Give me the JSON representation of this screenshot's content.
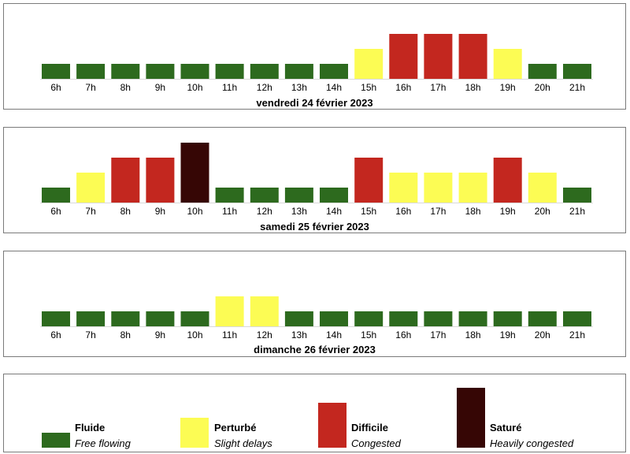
{
  "colors": {
    "fluide": "#2d6a1e",
    "perturbe": "#fcfc54",
    "difficile": "#c3271f",
    "sature": "#360605"
  },
  "level_scale": {
    "fluide": 1,
    "perturbe": 2,
    "difficile": 3,
    "sature": 4
  },
  "chart_data": [
    {
      "type": "bar",
      "title": "vendredi 24 février 2023",
      "categories": [
        "6h",
        "7h",
        "8h",
        "9h",
        "10h",
        "11h",
        "12h",
        "13h",
        "14h",
        "15h",
        "16h",
        "17h",
        "18h",
        "19h",
        "20h",
        "21h"
      ],
      "values": [
        "fluide",
        "fluide",
        "fluide",
        "fluide",
        "fluide",
        "fluide",
        "fluide",
        "fluide",
        "fluide",
        "perturbe",
        "difficile",
        "difficile",
        "difficile",
        "perturbe",
        "fluide",
        "fluide"
      ]
    },
    {
      "type": "bar",
      "title": "samedi 25 février 2023",
      "categories": [
        "6h",
        "7h",
        "8h",
        "9h",
        "10h",
        "11h",
        "12h",
        "13h",
        "14h",
        "15h",
        "16h",
        "17h",
        "18h",
        "19h",
        "20h",
        "21h"
      ],
      "values": [
        "fluide",
        "perturbe",
        "difficile",
        "difficile",
        "sature",
        "fluide",
        "fluide",
        "fluide",
        "fluide",
        "difficile",
        "perturbe",
        "perturbe",
        "perturbe",
        "difficile",
        "perturbe",
        "fluide"
      ]
    },
    {
      "type": "bar",
      "title": "dimanche 26 février 2023",
      "categories": [
        "6h",
        "7h",
        "8h",
        "9h",
        "10h",
        "11h",
        "12h",
        "13h",
        "14h",
        "15h",
        "16h",
        "17h",
        "18h",
        "19h",
        "20h",
        "21h"
      ],
      "values": [
        "fluide",
        "fluide",
        "fluide",
        "fluide",
        "fluide",
        "perturbe",
        "perturbe",
        "fluide",
        "fluide",
        "fluide",
        "fluide",
        "fluide",
        "fluide",
        "fluide",
        "fluide",
        "fluide"
      ]
    }
  ],
  "legend": [
    {
      "key": "fluide",
      "name": "Fluide",
      "desc": "Free flowing"
    },
    {
      "key": "perturbe",
      "name": "Perturbé",
      "desc": "Slight delays"
    },
    {
      "key": "difficile",
      "name": "Difficile",
      "desc": "Congested"
    },
    {
      "key": "sature",
      "name": "Saturé",
      "desc": "Heavily congested"
    }
  ]
}
